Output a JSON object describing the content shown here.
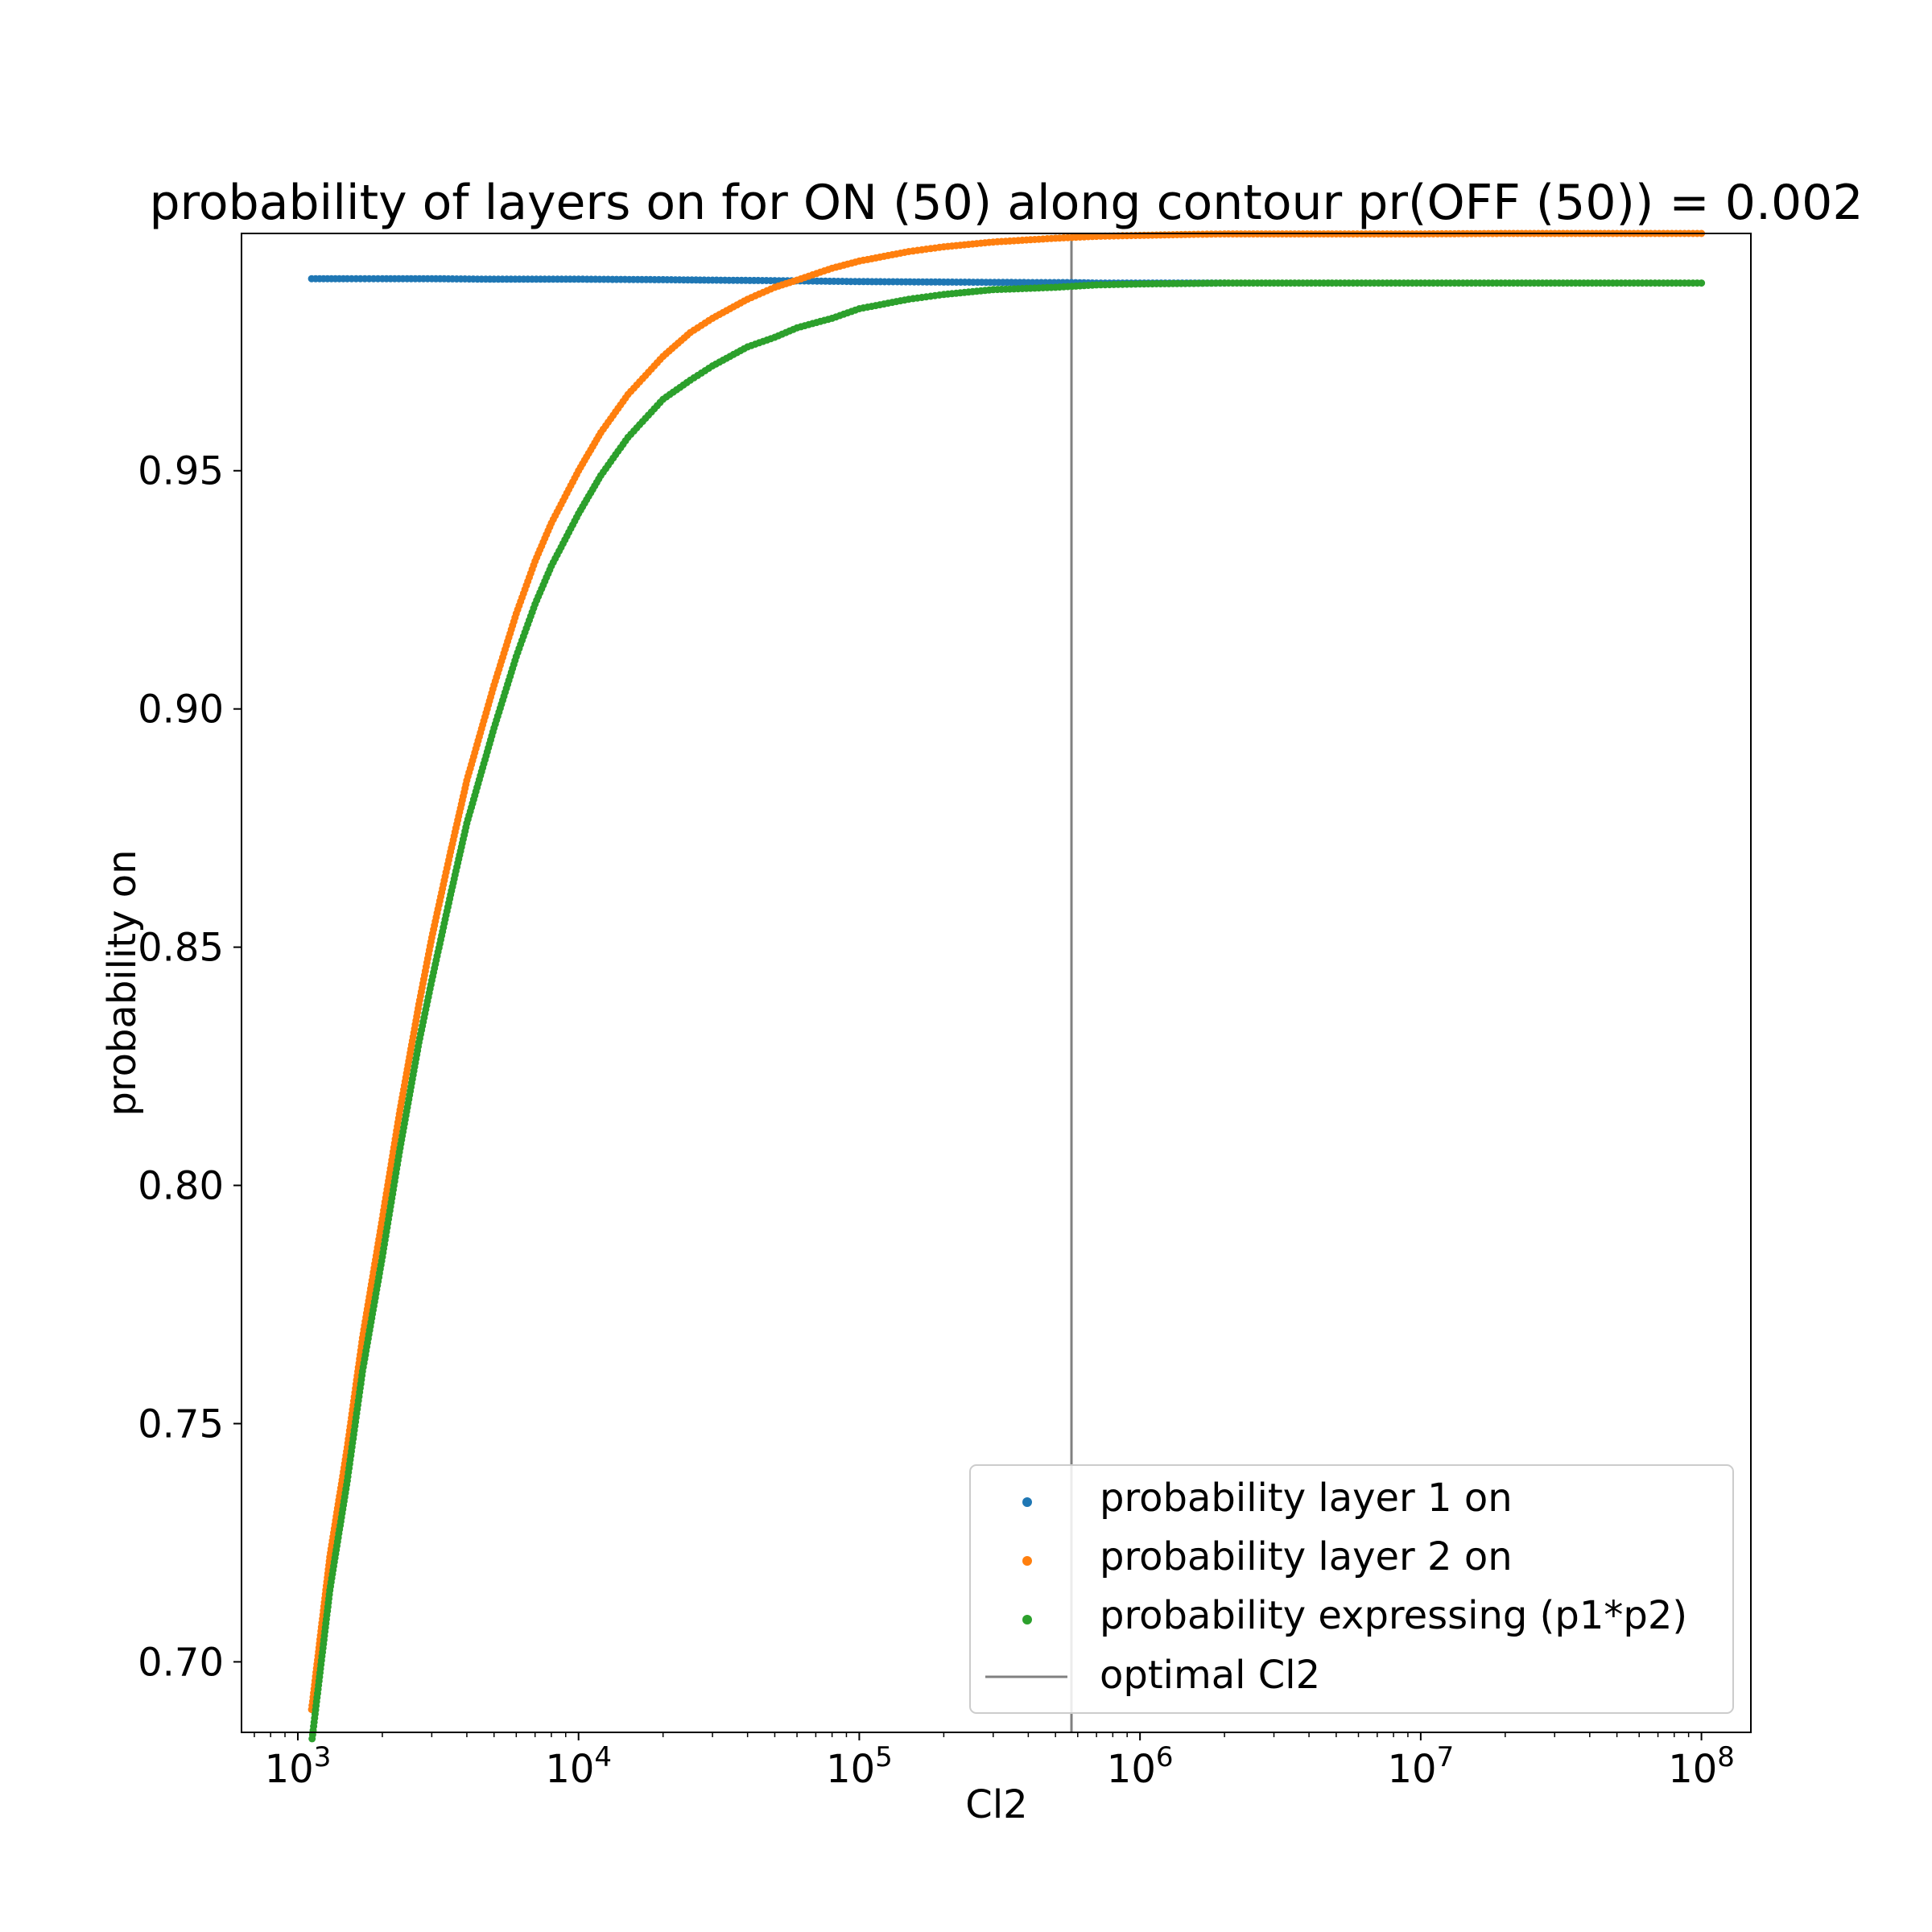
{
  "chart_data": {
    "type": "scatter",
    "title": "probability of layers on for ON (50) along contour pr(OFF (50)) = 0.002",
    "xlabel": "Cl2",
    "ylabel": "probability on",
    "x_scale": "log",
    "xlim": [
      630,
      150000000
    ],
    "ylim": [
      0.6852,
      0.9998
    ],
    "x_ticks": [
      {
        "value": 1000,
        "base": "10",
        "exp": "3"
      },
      {
        "value": 10000,
        "base": "10",
        "exp": "4"
      },
      {
        "value": 100000,
        "base": "10",
        "exp": "5"
      },
      {
        "value": 1000000,
        "base": "10",
        "exp": "6"
      },
      {
        "value": 10000000,
        "base": "10",
        "exp": "7"
      },
      {
        "value": 100000000,
        "base": "10",
        "exp": "8"
      }
    ],
    "y_ticks": [
      {
        "value": 0.7,
        "label": "0.70"
      },
      {
        "value": 0.75,
        "label": "0.75"
      },
      {
        "value": 0.8,
        "label": "0.80"
      },
      {
        "value": 0.85,
        "label": "0.85"
      },
      {
        "value": 0.9,
        "label": "0.90"
      },
      {
        "value": 0.95,
        "label": "0.95"
      }
    ],
    "grid": false,
    "legend_position": "lower-right",
    "series": [
      {
        "name": "probability layer 1 on",
        "color": "#1f77b4",
        "points": [
          [
            1120,
            0.9903
          ],
          [
            1500,
            0.9903
          ],
          [
            2000,
            0.9903
          ],
          [
            3000,
            0.9903
          ],
          [
            5000,
            0.9902
          ],
          [
            10000,
            0.9902
          ],
          [
            20000,
            0.9901
          ],
          [
            30000,
            0.99
          ],
          [
            50000,
            0.9899
          ],
          [
            100000,
            0.9897
          ],
          [
            200000,
            0.9896
          ],
          [
            400000,
            0.9895
          ],
          [
            570000,
            0.9895
          ],
          [
            700000,
            0.9894
          ],
          [
            1000000,
            0.9894
          ],
          [
            2000000,
            0.9894
          ]
        ]
      },
      {
        "name": "probability layer 2 on",
        "color": "#ff7f0e",
        "points": [
          [
            1120,
            0.69
          ],
          [
            1300,
            0.722
          ],
          [
            1500,
            0.745
          ],
          [
            1700,
            0.768
          ],
          [
            2000,
            0.793
          ],
          [
            2300,
            0.815
          ],
          [
            2700,
            0.838
          ],
          [
            3000,
            0.852
          ],
          [
            3500,
            0.87
          ],
          [
            4000,
            0.885
          ],
          [
            5000,
            0.905
          ],
          [
            6000,
            0.92
          ],
          [
            7000,
            0.931
          ],
          [
            8000,
            0.939
          ],
          [
            10000,
            0.95
          ],
          [
            12000,
            0.958
          ],
          [
            15000,
            0.966
          ],
          [
            20000,
            0.974
          ],
          [
            25000,
            0.979
          ],
          [
            30000,
            0.982
          ],
          [
            40000,
            0.986
          ],
          [
            50000,
            0.9885
          ],
          [
            60000,
            0.99
          ],
          [
            80000,
            0.9925
          ],
          [
            100000,
            0.994
          ],
          [
            150000,
            0.996
          ],
          [
            200000,
            0.997
          ],
          [
            300000,
            0.998
          ],
          [
            500000,
            0.9988
          ],
          [
            700000,
            0.9992
          ],
          [
            1000000,
            0.9994
          ],
          [
            1500000,
            0.9996
          ],
          [
            2000000,
            0.9997
          ],
          [
            3000000,
            0.9997
          ],
          [
            5000000,
            0.9997
          ],
          [
            10000000,
            0.9997
          ],
          [
            20000000,
            0.9998
          ],
          [
            50000000,
            0.9998
          ],
          [
            100000000,
            0.9998
          ]
        ]
      },
      {
        "name": "probability expressing (p1*p2)",
        "color": "#2ca02c",
        "points": [
          [
            1120,
            0.683
          ],
          [
            1300,
            0.715
          ],
          [
            1500,
            0.738
          ],
          [
            1700,
            0.761
          ],
          [
            2000,
            0.785
          ],
          [
            2300,
            0.807
          ],
          [
            2700,
            0.83
          ],
          [
            3000,
            0.843
          ],
          [
            3500,
            0.861
          ],
          [
            4000,
            0.876
          ],
          [
            5000,
            0.896
          ],
          [
            6000,
            0.911
          ],
          [
            7000,
            0.922
          ],
          [
            8000,
            0.93
          ],
          [
            10000,
            0.941
          ],
          [
            12000,
            0.949
          ],
          [
            15000,
            0.957
          ],
          [
            20000,
            0.965
          ],
          [
            25000,
            0.969
          ],
          [
            30000,
            0.972
          ],
          [
            40000,
            0.976
          ],
          [
            50000,
            0.978
          ],
          [
            60000,
            0.98
          ],
          [
            80000,
            0.982
          ],
          [
            100000,
            0.984
          ],
          [
            150000,
            0.986
          ],
          [
            200000,
            0.987
          ],
          [
            300000,
            0.988
          ],
          [
            500000,
            0.9885
          ],
          [
            700000,
            0.989
          ],
          [
            1000000,
            0.9892
          ],
          [
            1500000,
            0.9893
          ],
          [
            2000000,
            0.9894
          ],
          [
            3000000,
            0.9894
          ],
          [
            5000000,
            0.9894
          ],
          [
            10000000,
            0.9894
          ],
          [
            20000000,
            0.9894
          ],
          [
            50000000,
            0.9894
          ],
          [
            100000000,
            0.9894
          ]
        ]
      }
    ],
    "vline": {
      "name": "optimal Cl2",
      "x": 570000,
      "color": "#808080"
    }
  }
}
